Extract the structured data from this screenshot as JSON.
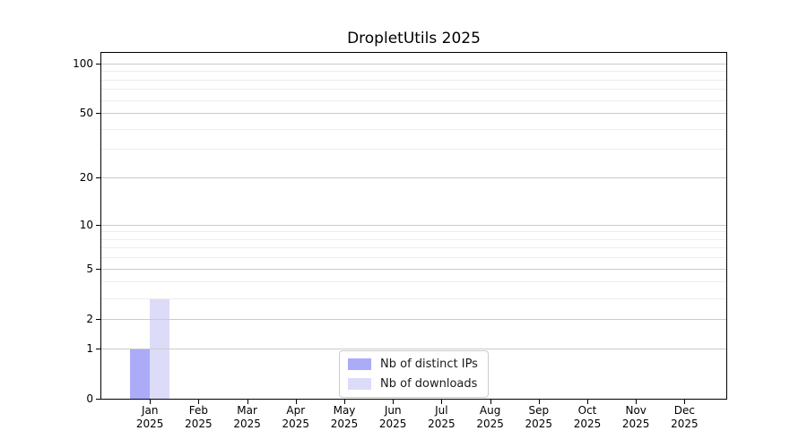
{
  "chart_data": {
    "type": "bar",
    "title": "DropletUtils 2025",
    "x_ticks": [
      {
        "month": "Jan",
        "year": "2025"
      },
      {
        "month": "Feb",
        "year": "2025"
      },
      {
        "month": "Mar",
        "year": "2025"
      },
      {
        "month": "Apr",
        "year": "2025"
      },
      {
        "month": "May",
        "year": "2025"
      },
      {
        "month": "Jun",
        "year": "2025"
      },
      {
        "month": "Jul",
        "year": "2025"
      },
      {
        "month": "Aug",
        "year": "2025"
      },
      {
        "month": "Sep",
        "year": "2025"
      },
      {
        "month": "Oct",
        "year": "2025"
      },
      {
        "month": "Nov",
        "year": "2025"
      },
      {
        "month": "Dec",
        "year": "2025"
      }
    ],
    "series": [
      {
        "key": "distinct-ips",
        "name": "Nb of distinct IPs",
        "color": "#ababf8",
        "values": [
          1,
          0,
          0,
          0,
          0,
          0,
          0,
          0,
          0,
          0,
          0,
          0
        ]
      },
      {
        "key": "downloads",
        "name": "Nb of downloads",
        "color": "#dcdcf8",
        "values": [
          3,
          0,
          0,
          0,
          0,
          0,
          0,
          0,
          0,
          0,
          0,
          0
        ]
      }
    ],
    "y_axis": {
      "scale": "log10(1+y)",
      "ticks": [
        0,
        1,
        2,
        5,
        10,
        20,
        50,
        100
      ],
      "minor_gridlines": [
        3,
        4,
        6,
        7,
        8,
        9,
        30,
        40,
        60,
        70,
        80,
        90
      ],
      "ylim": [
        0,
        115
      ]
    },
    "grid": true,
    "legend_position": "inside-bottom-center",
    "colors": {
      "axis": "#000000",
      "grid_major": "#cbcbcb",
      "grid_minor": "#ededed"
    }
  }
}
